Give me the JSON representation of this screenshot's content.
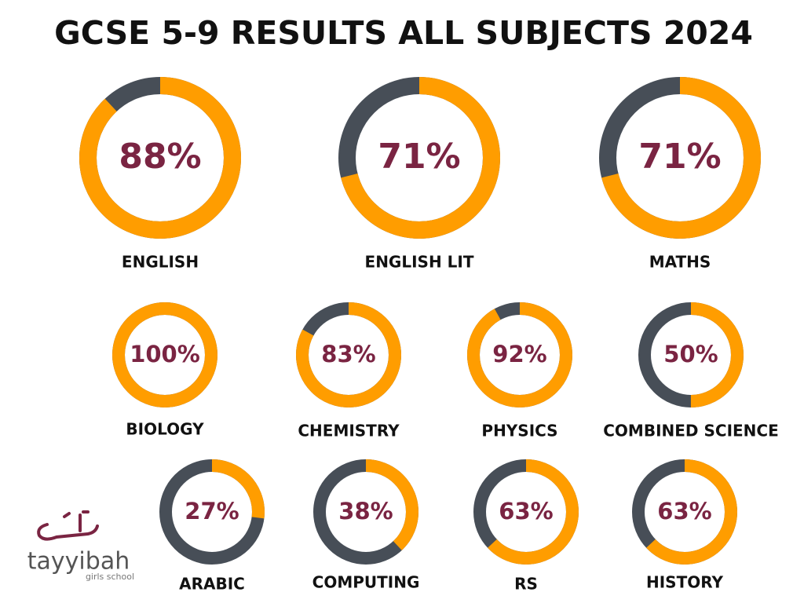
{
  "title": "GCSE 5-9 RESULTS ALL SUBJECTS 2024",
  "logo": {
    "name": "tayyibah",
    "subtitle": "girls school"
  },
  "colors": {
    "value": "#ff9d00",
    "track": "#474e57",
    "label": "#7a2442"
  },
  "chart_data": [
    {
      "type": "donut",
      "title": "ENGLISH",
      "values": [
        88
      ],
      "value_labels": [
        "88%"
      ],
      "ylim": [
        0,
        100
      ]
    },
    {
      "type": "donut",
      "title": "ENGLISH LIT",
      "values": [
        71
      ],
      "value_labels": [
        "71%"
      ],
      "ylim": [
        0,
        100
      ]
    },
    {
      "type": "donut",
      "title": "MATHS",
      "values": [
        71
      ],
      "value_labels": [
        "71%"
      ],
      "ylim": [
        0,
        100
      ]
    },
    {
      "type": "donut",
      "title": "BIOLOGY",
      "values": [
        100
      ],
      "value_labels": [
        "100%"
      ],
      "ylim": [
        0,
        100
      ]
    },
    {
      "type": "donut",
      "title": "CHEMISTRY",
      "values": [
        83
      ],
      "value_labels": [
        "83%"
      ],
      "ylim": [
        0,
        100
      ]
    },
    {
      "type": "donut",
      "title": "PHYSICS",
      "values": [
        92
      ],
      "value_labels": [
        "92%"
      ],
      "ylim": [
        0,
        100
      ]
    },
    {
      "type": "donut",
      "title": "COMBINED SCIENCE",
      "values": [
        50
      ],
      "value_labels": [
        "50%"
      ],
      "ylim": [
        0,
        100
      ]
    },
    {
      "type": "donut",
      "title": "ARABIC",
      "values": [
        27
      ],
      "value_labels": [
        "27%"
      ],
      "ylim": [
        0,
        100
      ]
    },
    {
      "type": "donut",
      "title": "COMPUTING",
      "values": [
        38
      ],
      "value_labels": [
        "38%"
      ],
      "ylim": [
        0,
        100
      ]
    },
    {
      "type": "donut",
      "title": "RS",
      "values": [
        63
      ],
      "value_labels": [
        "63%"
      ],
      "ylim": [
        0,
        100
      ]
    },
    {
      "type": "donut",
      "title": "HISTORY",
      "values": [
        63
      ],
      "value_labels": [
        "63%"
      ],
      "ylim": [
        0,
        100
      ]
    }
  ]
}
